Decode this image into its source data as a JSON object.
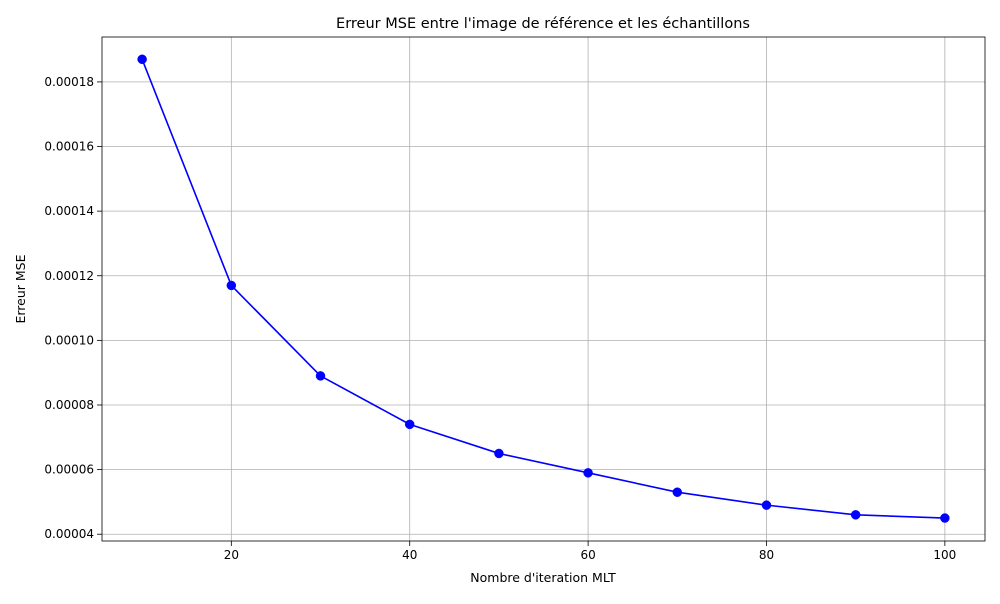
{
  "chart_data": {
    "type": "line",
    "title": "Erreur MSE entre l'image de référence et les échantillons",
    "xlabel": "Nombre d'iteration MLT",
    "ylabel": "Erreur MSE",
    "x": [
      10,
      20,
      30,
      40,
      50,
      60,
      70,
      80,
      90,
      100
    ],
    "series": [
      {
        "values": [
          0.000187,
          0.000117,
          8.9e-05,
          7.4e-05,
          6.5e-05,
          5.9e-05,
          5.3e-05,
          4.9e-05,
          4.6e-05,
          4.5e-05
        ],
        "color": "#0000ff",
        "marker": "circle"
      }
    ],
    "xlim": [
      5.5,
      104.5
    ],
    "ylim": [
      3.79e-05,
      0.0001939
    ],
    "xticks": [
      20,
      40,
      60,
      80,
      100
    ],
    "xtick_labels": [
      "20",
      "40",
      "60",
      "80",
      "100"
    ],
    "yticks": [
      4e-05,
      6e-05,
      8e-05,
      0.0001,
      0.00012,
      0.00014,
      0.00016,
      0.00018
    ],
    "ytick_labels": [
      "0.00004",
      "0.00006",
      "0.00008",
      "0.00010",
      "0.00012",
      "0.00014",
      "0.00016",
      "0.00018"
    ],
    "grid": true,
    "legend": false
  }
}
